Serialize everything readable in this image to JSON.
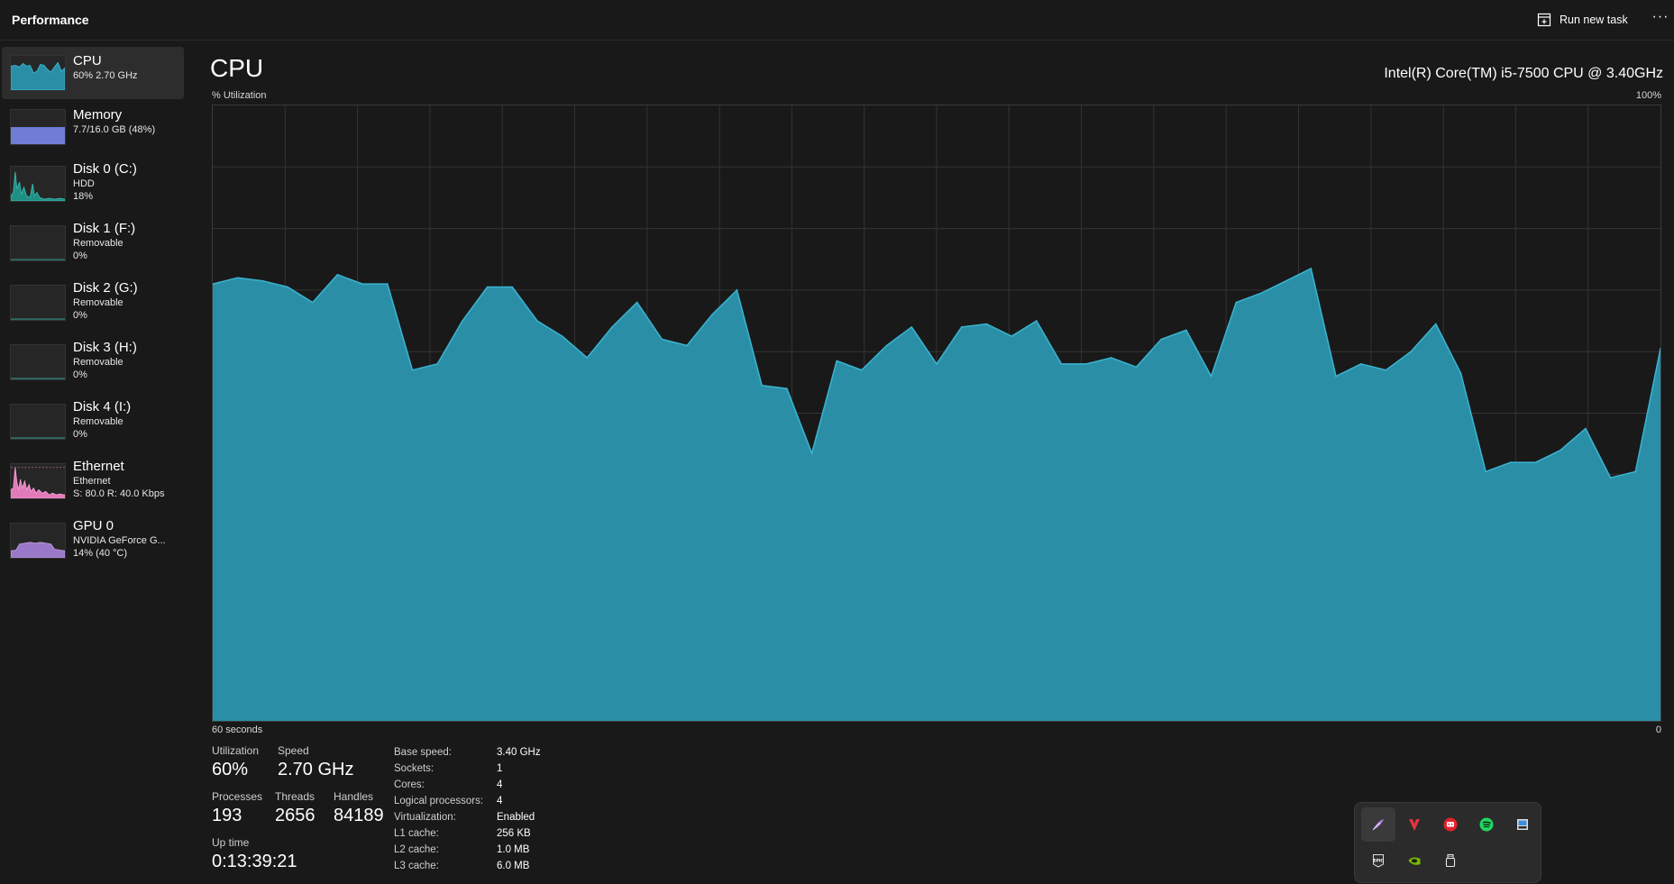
{
  "header": {
    "title": "Performance",
    "run_task_label": "Run new task",
    "more_label": "···"
  },
  "sidebar": {
    "items": [
      {
        "name": "CPU",
        "sub1": "60%  2.70 GHz",
        "sub2": "",
        "color": "#2a9bb4"
      },
      {
        "name": "Memory",
        "sub1": "7.7/16.0 GB (48%)",
        "sub2": "",
        "color": "#6f7ed4"
      },
      {
        "name": "Disk 0 (C:)",
        "sub1": "HDD",
        "sub2": "18%",
        "color": "#1f8f86"
      },
      {
        "name": "Disk 1 (F:)",
        "sub1": "Removable",
        "sub2": "0%",
        "color": "#1f8f86"
      },
      {
        "name": "Disk 2 (G:)",
        "sub1": "Removable",
        "sub2": "0%",
        "color": "#1f8f86"
      },
      {
        "name": "Disk 3 (H:)",
        "sub1": "Removable",
        "sub2": "0%",
        "color": "#1f8f86"
      },
      {
        "name": "Disk 4 (I:)",
        "sub1": "Removable",
        "sub2": "0%",
        "color": "#1f8f86"
      },
      {
        "name": "Ethernet",
        "sub1": "Ethernet",
        "sub2": "S: 80.0  R: 40.0 Kbps",
        "color": "#e07ab8"
      },
      {
        "name": "GPU 0",
        "sub1": "NVIDIA GeForce G...",
        "sub2": "14%  (40 °C)",
        "color": "#9a78c8"
      }
    ]
  },
  "main": {
    "title": "CPU",
    "model": "Intel(R) Core(TM) i5-7500 CPU @ 3.40GHz",
    "y_axis_label": "% Utilization",
    "y_max_label": "100%",
    "x_left_label": "60 seconds",
    "x_right_label": "0"
  },
  "chart_data": {
    "type": "area",
    "ylabel": "% Utilization",
    "xlabel": "60 seconds",
    "ylim": [
      0,
      100
    ],
    "xlim": [
      60,
      0
    ],
    "grid": true,
    "color": "#2a8fa6",
    "line_color": "#3ab4d2",
    "values": [
      71,
      72,
      71.5,
      70.5,
      68,
      72.5,
      71,
      71,
      57,
      58,
      65,
      70.5,
      70.5,
      65,
      62.5,
      59,
      64,
      68,
      62,
      61,
      66,
      70,
      54.5,
      54,
      43.5,
      58.5,
      57,
      61,
      64,
      58,
      64,
      64.5,
      62.5,
      65,
      58,
      58,
      59,
      57.5,
      62,
      63.5,
      56,
      68,
      69.5,
      71.5,
      73.5,
      56,
      58,
      57,
      60,
      64.5,
      56.5,
      40.5,
      42,
      42,
      44,
      47.5,
      39.5,
      40.5,
      60.5
    ]
  },
  "stats": {
    "utilization": {
      "label": "Utilization",
      "value": "60%"
    },
    "speed": {
      "label": "Speed",
      "value": "2.70 GHz"
    },
    "processes": {
      "label": "Processes",
      "value": "193"
    },
    "threads": {
      "label": "Threads",
      "value": "2656"
    },
    "handles": {
      "label": "Handles",
      "value": "84189"
    },
    "uptime": {
      "label": "Up time",
      "value": "0:13:39:21"
    }
  },
  "specs": [
    {
      "key": "Base speed:",
      "value": "3.40 GHz"
    },
    {
      "key": "Sockets:",
      "value": "1"
    },
    {
      "key": "Cores:",
      "value": "4"
    },
    {
      "key": "Logical processors:",
      "value": "4"
    },
    {
      "key": "Virtualization:",
      "value": "Enabled"
    },
    {
      "key": "L1 cache:",
      "value": "256 KB"
    },
    {
      "key": "L2 cache:",
      "value": "1.0 MB"
    },
    {
      "key": "L3 cache:",
      "value": "6.0 MB"
    }
  ],
  "tray": {
    "icons": [
      "feather-app-icon",
      "vivaldi-icon",
      "chat-app-icon",
      "spotify-icon",
      "window-app-icon",
      "epic-games-icon",
      "nvidia-icon",
      "usb-drive-icon"
    ],
    "epic_label": "EPIC"
  }
}
